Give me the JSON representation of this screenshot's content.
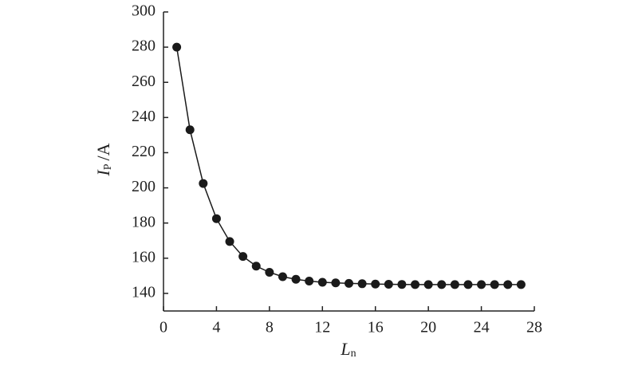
{
  "chart_data": {
    "type": "line",
    "xlabel": [
      "L",
      "n"
    ],
    "ylabel": [
      "I",
      "P",
      "/A"
    ],
    "x": [
      1,
      2,
      3,
      4,
      5,
      6,
      7,
      8,
      9,
      10,
      11,
      12,
      13,
      14,
      15,
      16,
      17,
      18,
      19,
      20,
      21,
      22,
      23,
      24,
      25,
      26,
      27
    ],
    "values": [
      280,
      233,
      202.5,
      182.5,
      169.5,
      161,
      155.5,
      152,
      149.5,
      148,
      147,
      146.3,
      146,
      145.7,
      145.5,
      145.3,
      145.2,
      145.1,
      145,
      145,
      145,
      145,
      145,
      145,
      145,
      145,
      145
    ],
    "color": "#1a1a1a",
    "xlim": [
      0,
      28
    ],
    "xticks": [
      0,
      4,
      8,
      12,
      16,
      20,
      24,
      28
    ],
    "ylim": [
      130,
      300
    ],
    "yticks": [
      140,
      160,
      180,
      200,
      220,
      240,
      260,
      280,
      300
    ]
  }
}
